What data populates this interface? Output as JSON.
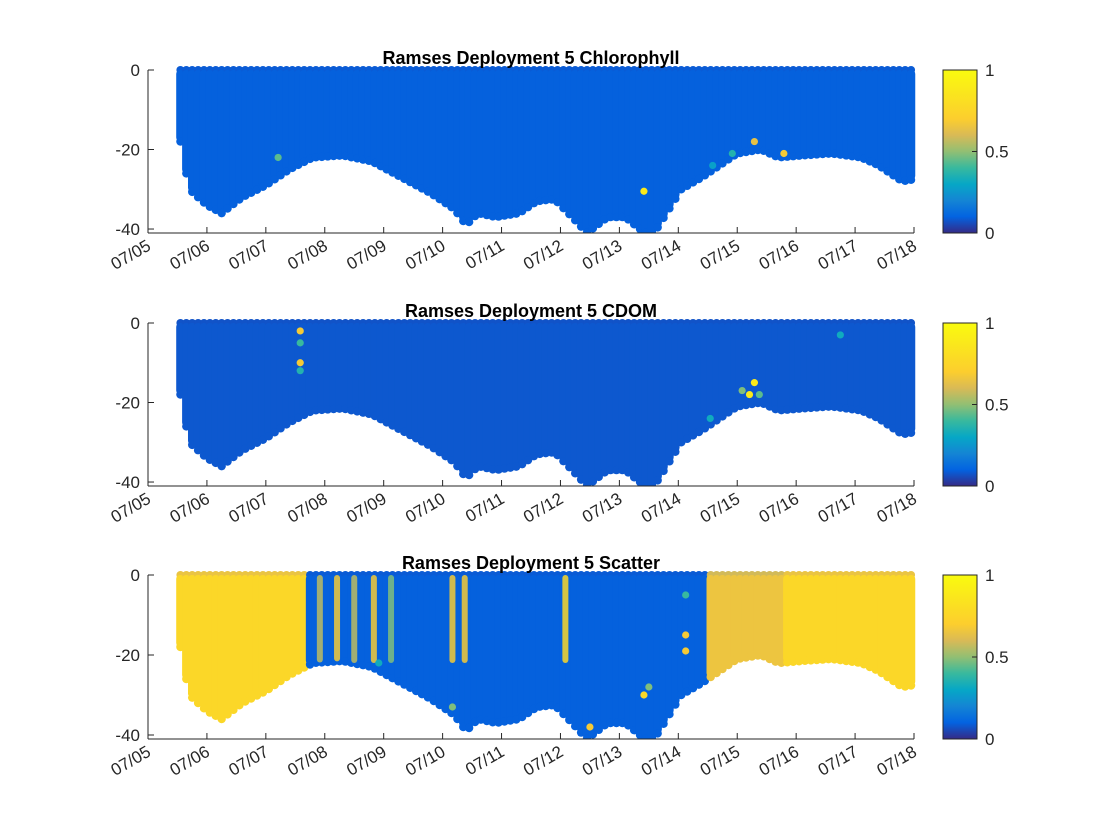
{
  "chart_data": [
    {
      "type": "scatter",
      "title": "Ramses Deployment 5 Chlorophyll",
      "xlabel": "",
      "ylabel": "",
      "x_range": [
        "2023-07-05",
        "2023-07-18"
      ],
      "x_tick_labels": [
        "07/05",
        "07/06",
        "07/07",
        "07/08",
        "07/09",
        "07/10",
        "07/11",
        "07/12",
        "07/13",
        "07/14",
        "07/15",
        "07/16",
        "07/17",
        "07/18"
      ],
      "ylim": [
        -41,
        0
      ],
      "y_ticks": [
        0,
        -20,
        -40
      ],
      "colorbar": {
        "min": 0,
        "max": 1,
        "ticks": [
          0,
          0.5,
          1
        ],
        "colormap": "parula"
      },
      "background_level": 0.12,
      "grid": false,
      "outliers": [
        {
          "x": "07/07 05:00",
          "depth": -22,
          "value": 0.55
        },
        {
          "x": "07/13 10:00",
          "depth": -30.5,
          "value": 0.95
        },
        {
          "x": "07/15 19:00",
          "depth": -21,
          "value": 0.85
        },
        {
          "x": "07/14 22:00",
          "depth": -21,
          "value": 0.45
        },
        {
          "x": "07/14 14:00",
          "depth": -24,
          "value": 0.35
        },
        {
          "x": "07/15 07:00",
          "depth": -18,
          "value": 0.8
        }
      ]
    },
    {
      "type": "scatter",
      "title": "Ramses Deployment 5 CDOM",
      "xlabel": "",
      "ylabel": "",
      "x_range": [
        "2023-07-05",
        "2023-07-18"
      ],
      "x_tick_labels": [
        "07/05",
        "07/06",
        "07/07",
        "07/08",
        "07/09",
        "07/10",
        "07/11",
        "07/12",
        "07/13",
        "07/14",
        "07/15",
        "07/16",
        "07/17",
        "07/18"
      ],
      "ylim": [
        -41,
        0
      ],
      "y_ticks": [
        0,
        -20,
        -40
      ],
      "colorbar": {
        "min": 0,
        "max": 1,
        "ticks": [
          0,
          0.5,
          1
        ],
        "colormap": "parula"
      },
      "background_level": 0.1,
      "grid": false,
      "outliers": [
        {
          "x": "07/07 14:00",
          "depth": -2,
          "value": 0.85
        },
        {
          "x": "07/07 14:00",
          "depth": -5,
          "value": 0.5
        },
        {
          "x": "07/07 14:00",
          "depth": -10,
          "value": 0.85
        },
        {
          "x": "07/07 14:00",
          "depth": -12,
          "value": 0.45
        },
        {
          "x": "07/15 02:00",
          "depth": -17,
          "value": 0.6
        },
        {
          "x": "07/15 07:00",
          "depth": -15,
          "value": 0.95
        },
        {
          "x": "07/15 05:00",
          "depth": -18,
          "value": 0.95
        },
        {
          "x": "07/15 09:00",
          "depth": -18,
          "value": 0.55
        },
        {
          "x": "07/16 18:00",
          "depth": -3,
          "value": 0.4
        },
        {
          "x": "07/14 13:00",
          "depth": -24,
          "value": 0.4
        }
      ]
    },
    {
      "type": "scatter",
      "title": "Ramses Deployment 5 Scatter",
      "xlabel": "",
      "ylabel": "",
      "x_range": [
        "2023-07-05",
        "2023-07-18"
      ],
      "x_tick_labels": [
        "07/05",
        "07/06",
        "07/07",
        "07/08",
        "07/09",
        "07/10",
        "07/11",
        "07/12",
        "07/13",
        "07/14",
        "07/15",
        "07/16",
        "07/17",
        "07/18"
      ],
      "ylim": [
        -41,
        0
      ],
      "y_ticks": [
        0,
        -20,
        -40
      ],
      "colorbar": {
        "min": 0,
        "max": 1,
        "ticks": [
          0,
          0.5,
          1
        ],
        "colormap": "parula"
      },
      "segments": [
        {
          "from": "07/05 14:00",
          "to": "07/07 17:00",
          "value": 0.9
        },
        {
          "from": "07/07 17:00",
          "to": "07/14 12:00",
          "value": 0.12
        },
        {
          "from": "07/14 12:00",
          "to": "07/15 20:00",
          "value": 0.82
        },
        {
          "from": "07/15 20:00",
          "to": "07/18",
          "value": 0.9
        }
      ],
      "grid": false,
      "outliers": [
        {
          "x": "07/12 12:00",
          "depth": -38,
          "value": 0.85
        },
        {
          "x": "07/13 10:00",
          "depth": -30,
          "value": 0.9
        },
        {
          "x": "07/13 12:00",
          "depth": -28,
          "value": 0.6
        },
        {
          "x": "07/14 03:00",
          "depth": -19,
          "value": 0.85
        },
        {
          "x": "07/14 03:00",
          "depth": -15,
          "value": 0.85
        },
        {
          "x": "07/14 03:00",
          "depth": -5,
          "value": 0.5
        },
        {
          "x": "07/08 22:00",
          "depth": -22,
          "value": 0.4
        },
        {
          "x": "07/10 04:00",
          "depth": -33,
          "value": 0.6
        }
      ],
      "vertical_streaks": [
        {
          "x": "07/07 22:00",
          "value": 0.7
        },
        {
          "x": "07/08 05:00",
          "value": 0.85
        },
        {
          "x": "07/08 12:00",
          "value": 0.7
        },
        {
          "x": "07/08 20:00",
          "value": 0.85
        },
        {
          "x": "07/09 03:00",
          "value": 0.6
        },
        {
          "x": "07/10 04:00",
          "value": 0.85
        },
        {
          "x": "07/10 09:00",
          "value": 0.85
        },
        {
          "x": "07/12 02:00",
          "value": 0.9
        }
      ]
    }
  ]
}
